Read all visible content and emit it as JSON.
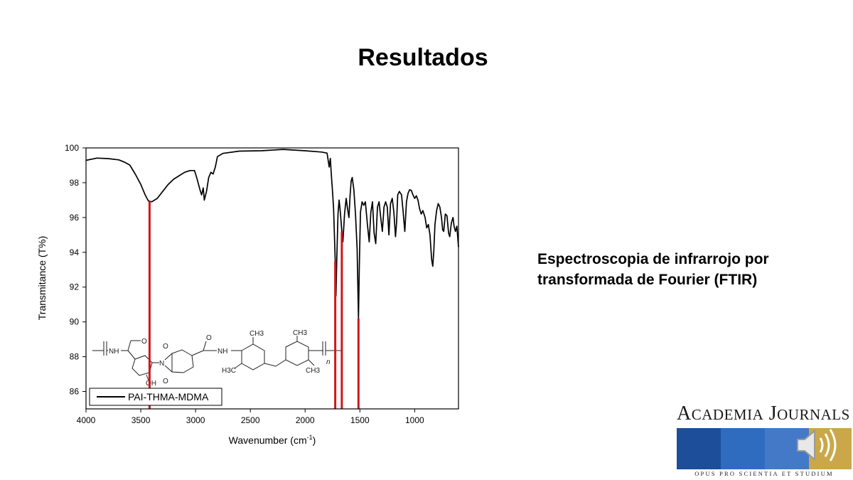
{
  "slide": {
    "title": "Resultados",
    "subtitle_line1": "Espectroscopia de infrarrojo por",
    "subtitle_line2": "transformada de Fourier (FTIR)"
  },
  "logo": {
    "name_a": "A",
    "name_b": "CADEMIA",
    "name_c": "J",
    "name_d": "OURNALS",
    "motto": "OPUS PRO SCIENTIA ET STUDIUM",
    "colors": [
      "#1d4e9a",
      "#2f6cc0",
      "#4479c8",
      "#caa84a"
    ]
  },
  "chart_data": {
    "type": "line",
    "xlabel": "Wavenumber (cm",
    "xlabel_sup": "-1",
    "xlabel_end": ")",
    "ylabel": "Transmitance (T%)",
    "xlim": [
      4000,
      600
    ],
    "ylim": [
      85,
      100
    ],
    "x_ticks": [
      4000,
      3500,
      3000,
      2500,
      2000,
      1500,
      1000
    ],
    "y_ticks": [
      86,
      88,
      90,
      92,
      94,
      96,
      98,
      100
    ],
    "legend": "PAI-THMA-MDMA",
    "legend_position": "bottom-left",
    "series": [
      {
        "name": "PAI-THMA-MDMA",
        "color": "#000000",
        "points": [
          [
            4000,
            99.3
          ],
          [
            3900,
            99.4
          ],
          [
            3800,
            99.4
          ],
          [
            3700,
            99.3
          ],
          [
            3650,
            99.2
          ],
          [
            3600,
            99.0
          ],
          [
            3550,
            98.5
          ],
          [
            3500,
            97.9
          ],
          [
            3460,
            97.3
          ],
          [
            3430,
            96.95
          ],
          [
            3400,
            96.9
          ],
          [
            3350,
            97.1
          ],
          [
            3300,
            97.5
          ],
          [
            3250,
            97.9
          ],
          [
            3200,
            98.2
          ],
          [
            3150,
            98.4
          ],
          [
            3100,
            98.6
          ],
          [
            3050,
            98.7
          ],
          [
            3010,
            98.7
          ],
          [
            2990,
            98.3
          ],
          [
            2960,
            97.6
          ],
          [
            2945,
            97.3
          ],
          [
            2930,
            97.7
          ],
          [
            2920,
            97.0
          ],
          [
            2900,
            97.5
          ],
          [
            2880,
            98.3
          ],
          [
            2860,
            98.6
          ],
          [
            2840,
            98.5
          ],
          [
            2820,
            98.9
          ],
          [
            2800,
            99.5
          ],
          [
            2750,
            99.7
          ],
          [
            2600,
            99.8
          ],
          [
            2400,
            99.85
          ],
          [
            2200,
            99.9
          ],
          [
            2000,
            99.85
          ],
          [
            1850,
            99.75
          ],
          [
            1800,
            99.7
          ],
          [
            1790,
            99.3
          ],
          [
            1780,
            98.9
          ],
          [
            1770,
            99.4
          ],
          [
            1760,
            98.4
          ],
          [
            1750,
            97.5
          ],
          [
            1740,
            96.5
          ],
          [
            1725,
            93.5
          ],
          [
            1718,
            91.5
          ],
          [
            1710,
            93.8
          ],
          [
            1700,
            96.2
          ],
          [
            1690,
            97.0
          ],
          [
            1680,
            96.4
          ],
          [
            1665,
            95.2
          ],
          [
            1655,
            94.6
          ],
          [
            1640,
            96.2
          ],
          [
            1625,
            97.1
          ],
          [
            1610,
            96.4
          ],
          [
            1600,
            96.0
          ],
          [
            1590,
            97.2
          ],
          [
            1580,
            98.1
          ],
          [
            1570,
            98.3
          ],
          [
            1555,
            97.6
          ],
          [
            1540,
            96.2
          ],
          [
            1525,
            94.2
          ],
          [
            1513,
            90.2
          ],
          [
            1505,
            93.2
          ],
          [
            1495,
            96.3
          ],
          [
            1480,
            96.9
          ],
          [
            1465,
            96.7
          ],
          [
            1450,
            96.9
          ],
          [
            1430,
            95.5
          ],
          [
            1415,
            94.6
          ],
          [
            1400,
            96.3
          ],
          [
            1385,
            96.9
          ],
          [
            1370,
            95.1
          ],
          [
            1355,
            94.5
          ],
          [
            1340,
            96.6
          ],
          [
            1325,
            96.9
          ],
          [
            1310,
            96.0
          ],
          [
            1295,
            95.2
          ],
          [
            1280,
            96.6
          ],
          [
            1265,
            96.9
          ],
          [
            1250,
            96.6
          ],
          [
            1235,
            95.0
          ],
          [
            1220,
            96.8
          ],
          [
            1205,
            97.1
          ],
          [
            1190,
            96.3
          ],
          [
            1175,
            94.9
          ],
          [
            1165,
            95.7
          ],
          [
            1155,
            97.3
          ],
          [
            1140,
            97.5
          ],
          [
            1120,
            97.3
          ],
          [
            1105,
            96.3
          ],
          [
            1090,
            95.2
          ],
          [
            1075,
            96.9
          ],
          [
            1060,
            97.4
          ],
          [
            1045,
            97.6
          ],
          [
            1030,
            97.55
          ],
          [
            1015,
            97.3
          ],
          [
            1000,
            97.1
          ],
          [
            985,
            97.25
          ],
          [
            970,
            97.0
          ],
          [
            955,
            96.5
          ],
          [
            940,
            96.2
          ],
          [
            925,
            96.4
          ],
          [
            905,
            96.0
          ],
          [
            890,
            95.4
          ],
          [
            875,
            95.6
          ],
          [
            860,
            95.0
          ],
          [
            845,
            93.6
          ],
          [
            835,
            93.2
          ],
          [
            825,
            94.1
          ],
          [
            815,
            95.6
          ],
          [
            800,
            96.4
          ],
          [
            785,
            96.8
          ],
          [
            770,
            96.6
          ],
          [
            755,
            96.0
          ],
          [
            745,
            95.3
          ],
          [
            735,
            95.2
          ],
          [
            720,
            96.2
          ],
          [
            705,
            96.1
          ],
          [
            690,
            95.1
          ],
          [
            680,
            94.9
          ],
          [
            665,
            95.7
          ],
          [
            650,
            96.0
          ],
          [
            640,
            95.5
          ],
          [
            628,
            95.2
          ],
          [
            615,
            95.5
          ],
          [
            600,
            94.3
          ]
        ]
      }
    ],
    "markers": [
      3420,
      1725,
      1665,
      1513
    ]
  }
}
